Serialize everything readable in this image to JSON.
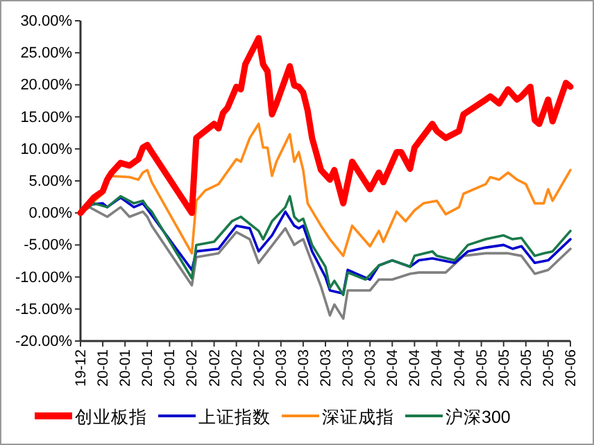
{
  "chart_data": {
    "type": "line",
    "legend": "bottom",
    "line_style": "solid",
    "marker": "none",
    "grid": false,
    "categories": [
      "19-12",
      null,
      null,
      null,
      null,
      "20-01",
      null,
      null,
      null,
      null,
      "20-01",
      null,
      null,
      null,
      null,
      "20-01",
      null,
      null,
      null,
      null,
      "20-01",
      null,
      null,
      null,
      null,
      "20-02",
      null,
      null,
      null,
      null,
      "20-02",
      null,
      null,
      null,
      null,
      "20-02",
      null,
      null,
      null,
      null,
      "20-02",
      null,
      null,
      null,
      null,
      "20-03",
      null,
      null,
      null,
      null,
      "20-03",
      null,
      null,
      null,
      null,
      "20-03",
      null,
      null,
      null,
      null,
      "20-03",
      null,
      null,
      null,
      null,
      "20-03",
      null,
      null,
      null,
      null,
      "20-04",
      null,
      null,
      null,
      null,
      "20-04",
      null,
      null,
      null,
      null,
      "20-04",
      null,
      null,
      null,
      null,
      "20-04",
      null,
      null,
      null,
      null,
      "20-05",
      null,
      null,
      null,
      null,
      "20-05",
      null,
      null,
      null,
      null,
      "20-05",
      null,
      null,
      null,
      null,
      "20-05",
      null,
      null,
      null,
      null,
      "20-06"
    ],
    "ylim": [
      -20,
      30
    ],
    "yticks": [
      {
        "value": -20,
        "label": "-20.00%"
      },
      {
        "value": -15,
        "label": "-15.00%"
      },
      {
        "value": -10,
        "label": "-10.00%"
      },
      {
        "value": -5,
        "label": "-5.00%"
      },
      {
        "value": 0,
        "label": "0.00%"
      },
      {
        "value": 5,
        "label": "5.00%"
      },
      {
        "value": 10,
        "label": "10.00%"
      },
      {
        "value": 15,
        "label": "15.00%"
      },
      {
        "value": 20,
        "label": "20.00%"
      },
      {
        "value": 25,
        "label": "25.00%"
      },
      {
        "value": 30,
        "label": "30.00%"
      }
    ],
    "series": [
      {
        "name": "创业板指",
        "color": "#ff0000",
        "values": [
          0,
          null,
          null,
          2.4,
          null,
          3.4,
          5.2,
          6.3,
          null,
          7.8,
          null,
          7.4,
          null,
          8.4,
          10.2,
          10.6,
          9.5,
          null,
          null,
          null,
          null,
          null,
          null,
          null,
          null,
          0,
          11.7,
          null,
          null,
          null,
          13.9,
          13.2,
          15.6,
          16.4,
          null,
          19.7,
          19.3,
          23.2,
          null,
          null,
          27.3,
          23.2,
          22.1,
          15.4,
          17.1,
          null,
          null,
          22.9,
          19.9,
          19.7,
          18.8,
          16,
          11.7,
          null,
          6.7,
          null,
          5.2,
          6.7,
          null,
          1.5,
          null,
          8,
          null,
          null,
          null,
          3.7,
          null,
          6.3,
          4.8,
          null,
          null,
          9.5,
          9.5,
          null,
          6.9,
          10.2,
          null,
          null,
          null,
          13.9,
          12.8,
          null,
          11.7,
          null,
          null,
          12.8,
          15.4,
          null,
          null,
          null,
          null,
          17.7,
          18.2,
          null,
          17.1,
          null,
          19.3,
          null,
          17.7,
          18.2,
          null,
          19.7,
          14.5,
          13.9,
          null,
          17.7,
          14.3,
          null,
          null,
          20.3,
          19.7
        ]
      },
      {
        "name": "上证指数",
        "color": "#0000cc",
        "values": [
          0,
          null,
          1.3,
          null,
          null,
          1.5,
          0.9,
          null,
          null,
          2.4,
          null,
          null,
          0.9,
          null,
          1.5,
          0.6,
          null,
          null,
          null,
          null,
          null,
          null,
          null,
          null,
          null,
          -8.9,
          -6,
          null,
          null,
          null,
          null,
          -5.6,
          null,
          null,
          null,
          -2,
          null,
          null,
          -2.4,
          null,
          -6,
          null,
          null,
          -3.5,
          null,
          null,
          0.2,
          null,
          -2,
          -2.4,
          -2,
          null,
          -6,
          null,
          null,
          -10,
          -12.1,
          null,
          null,
          -12.6,
          -8.9,
          null,
          null,
          null,
          null,
          -10.4,
          null,
          -8.2,
          null,
          null,
          -7.4,
          null,
          null,
          null,
          -8.4,
          null,
          -7.4,
          null,
          null,
          -7.1,
          null,
          null,
          null,
          null,
          -7.8,
          null,
          null,
          -6,
          null,
          null,
          null,
          -5.4,
          null,
          null,
          null,
          -5,
          null,
          -5.6,
          null,
          -5.2,
          null,
          null,
          -7.8,
          null,
          null,
          -7.4,
          null,
          null,
          null,
          null,
          -4.1
        ]
      },
      {
        "name": "深证成指",
        "color": "#ff8c1a",
        "values": [
          0,
          null,
          null,
          null,
          null,
          3,
          5.8,
          null,
          null,
          null,
          null,
          5.6,
          null,
          5.2,
          6.3,
          6.7,
          4.8,
          null,
          null,
          null,
          null,
          null,
          null,
          null,
          null,
          -6.3,
          1.9,
          null,
          3.5,
          null,
          null,
          4.5,
          null,
          null,
          null,
          8.4,
          8,
          null,
          11.7,
          null,
          13.9,
          10.2,
          10.2,
          5.8,
          8,
          null,
          null,
          12.3,
          8,
          9.5,
          6.7,
          1.5,
          null,
          null,
          -2,
          null,
          -4.1,
          null,
          null,
          -6.7,
          null,
          -2,
          null,
          null,
          null,
          -5.2,
          null,
          -2.8,
          -4.5,
          null,
          null,
          0.2,
          null,
          -1.3,
          null,
          0.4,
          null,
          1.5,
          null,
          null,
          1.9,
          null,
          -0.2,
          null,
          null,
          0.9,
          3,
          null,
          null,
          null,
          null,
          4.5,
          5.6,
          null,
          5.2,
          null,
          6.3,
          null,
          5.2,
          null,
          4.5,
          null,
          1.5,
          null,
          1.5,
          3.7,
          1.9,
          null,
          null,
          null,
          6.7
        ]
      },
      {
        "name": "沪深300",
        "color": "#1a7a4a",
        "values": [
          0,
          null,
          null,
          1.5,
          null,
          null,
          0.9,
          null,
          null,
          2.6,
          null,
          null,
          1.5,
          null,
          1.9,
          0.9,
          0.2,
          null,
          null,
          null,
          null,
          null,
          null,
          null,
          null,
          -10.2,
          -5,
          null,
          null,
          null,
          -4.5,
          null,
          null,
          null,
          -1.3,
          null,
          -0.6,
          null,
          null,
          null,
          -2.8,
          -4.1,
          null,
          -1.3,
          null,
          null,
          0.9,
          2.6,
          -0.6,
          -1.3,
          -0.9,
          null,
          -5,
          null,
          null,
          -8.4,
          -11.7,
          -10.6,
          null,
          -12.8,
          -9.3,
          null,
          null,
          null,
          -10.4,
          null,
          null,
          -8.2,
          null,
          null,
          -7.4,
          null,
          null,
          null,
          -8.4,
          -6.7,
          null,
          null,
          null,
          -6,
          -6.7,
          null,
          null,
          null,
          -7.4,
          null,
          null,
          -5,
          null,
          null,
          null,
          -4.1,
          null,
          null,
          null,
          -3.5,
          null,
          -4.1,
          null,
          -3.9,
          null,
          null,
          -6.7,
          null,
          -6.3,
          null,
          -6,
          null,
          null,
          null,
          -2.8
        ]
      },
      {
        "color": "#808080",
        "values": [
          0,
          null,
          0.9,
          null,
          null,
          null,
          -0.6,
          null,
          null,
          0.9,
          null,
          -0.6,
          null,
          null,
          0.2,
          -0.6,
          -2,
          null,
          null,
          null,
          null,
          null,
          null,
          null,
          null,
          -11.3,
          -6.9,
          null,
          null,
          null,
          null,
          -6.3,
          null,
          null,
          null,
          -3,
          null,
          null,
          -4.1,
          null,
          -7.8,
          null,
          -6,
          null,
          null,
          null,
          -2.4,
          null,
          -5,
          -4.5,
          -4.1,
          null,
          -7.8,
          null,
          -11.5,
          null,
          -16,
          -14.3,
          null,
          -16.5,
          -12.1,
          null,
          null,
          null,
          null,
          -12.1,
          null,
          -10.4,
          null,
          null,
          -10.4,
          null,
          null,
          null,
          -9.5,
          null,
          -9.3,
          null,
          null,
          null,
          null,
          null,
          -9.3,
          null,
          null,
          null,
          -6.7,
          null,
          null,
          null,
          null,
          -6.3,
          null,
          null,
          null,
          null,
          -6.3,
          null,
          null,
          -6.7,
          null,
          null,
          -9.5,
          null,
          null,
          -8.9,
          null,
          null,
          null,
          null,
          -5.6
        ]
      }
    ]
  }
}
